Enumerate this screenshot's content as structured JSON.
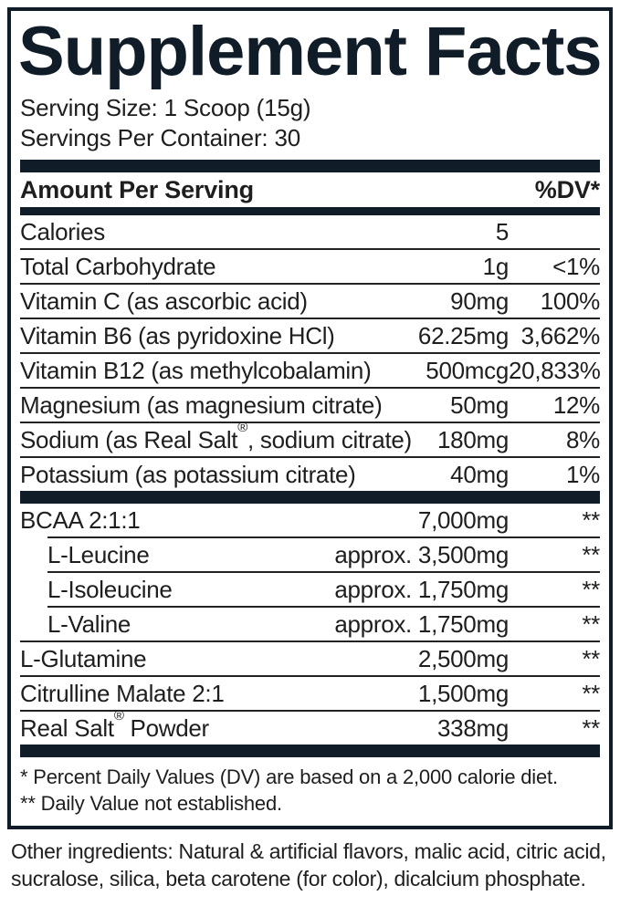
{
  "label": {
    "title": "Supplement Facts",
    "serving_size": "Serving Size: 1 Scoop (15g)",
    "servings_per_container": "Servings Per Container: 30",
    "header": {
      "amount_per_serving": "Amount Per Serving",
      "dv": "%DV*"
    },
    "rows_main": [
      {
        "name": "Calories",
        "amount": "5",
        "dv": ""
      },
      {
        "name": "Total Carbohydrate",
        "amount": "1g",
        "dv": "<1%"
      },
      {
        "name": "Vitamin C (as ascorbic acid)",
        "amount": "90mg",
        "dv": "100%"
      },
      {
        "name": "Vitamin B6 (as pyridoxine HCl)",
        "amount": "62.25mg",
        "dv": "3,662%"
      },
      {
        "name": "Vitamin B12 (as methylcobalamin)",
        "amount": "500mcg",
        "dv": "20,833%"
      },
      {
        "name": "Magnesium (as magnesium citrate)",
        "amount": "50mg",
        "dv": "12%"
      },
      {
        "name": "Sodium (as Real Salt®, sodium citrate)",
        "amount": "180mg",
        "dv": "8%"
      },
      {
        "name": "Potassium (as potassium citrate)",
        "amount": "40mg",
        "dv": "1%"
      }
    ],
    "rows_blend": [
      {
        "name": "BCAA 2:1:1",
        "amount": "7,000mg",
        "dv": "**"
      },
      {
        "name": "L-Leucine",
        "amount": "approx. 3,500mg",
        "dv": "**"
      },
      {
        "name": "L-Isoleucine",
        "amount": "approx. 1,750mg",
        "dv": "**"
      },
      {
        "name": "L-Valine",
        "amount": "approx. 1,750mg",
        "dv": "**"
      },
      {
        "name": "L-Glutamine",
        "amount": "2,500mg",
        "dv": "**"
      },
      {
        "name": "Citrulline Malate 2:1",
        "amount": "1,500mg",
        "dv": "**"
      },
      {
        "name": "Real Salt® Powder",
        "amount": "338mg",
        "dv": "**"
      }
    ],
    "footnotes": [
      "* Percent Daily Values (DV) are based on a 2,000 calorie diet.",
      "** Daily Value not established."
    ],
    "other_ingredients": "Other ingredients: Natural & artificial flavors, malic acid, citric acid, sucralose, silica, beta carotene (for color), dicalcium phosphate.",
    "colors": {
      "ink": "#101c28",
      "text": "#1e1e1e"
    }
  }
}
